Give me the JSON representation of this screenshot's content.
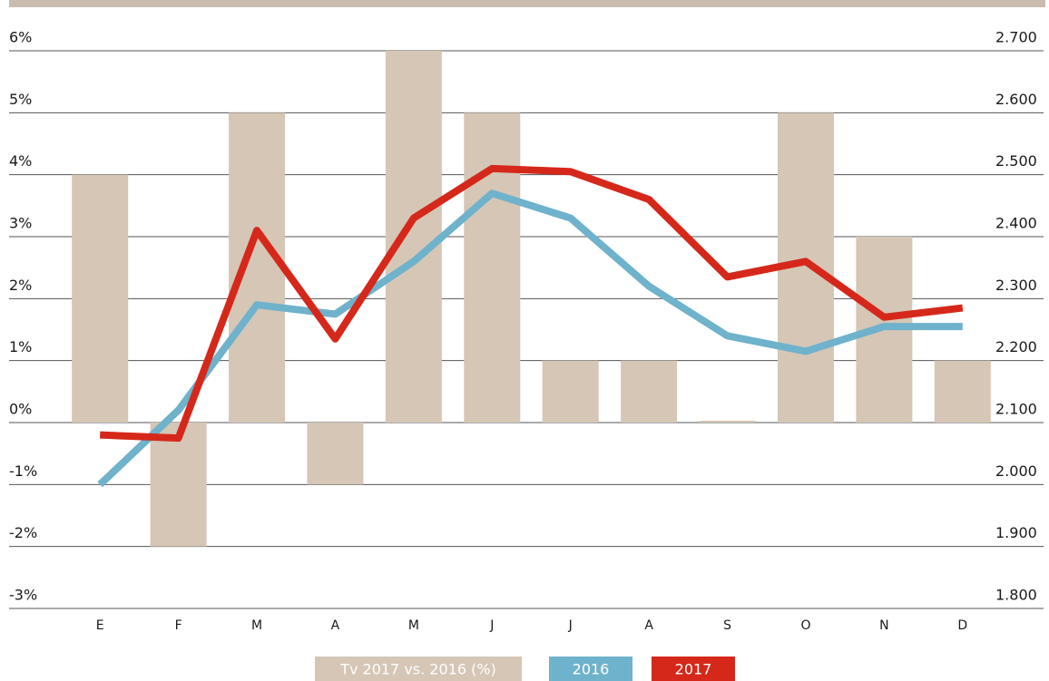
{
  "chart_data": {
    "type": "bar-line",
    "categories": [
      "E",
      "F",
      "M",
      "A",
      "M",
      "J",
      "J",
      "A",
      "S",
      "O",
      "N",
      "D"
    ],
    "series": [
      {
        "name": "Tv 2017 vs. 2016 (%)",
        "type": "bar",
        "color": "#d5c6b6",
        "values": [
          4,
          -2,
          5,
          -1,
          6,
          5,
          1,
          1,
          0.03,
          5,
          3,
          1
        ]
      },
      {
        "name": "2016",
        "type": "line",
        "axis": "y2",
        "color": "#6fb2cb",
        "values": [
          2000,
          2120,
          2290,
          2275,
          2360,
          2470,
          2430,
          2320,
          2240,
          2215,
          2255,
          2255
        ]
      },
      {
        "name": "2017",
        "type": "line",
        "axis": "y2",
        "color": "#d5281b",
        "values": [
          2080,
          2075,
          2410,
          2235,
          2430,
          2510,
          2505,
          2460,
          2335,
          2360,
          2270,
          2285
        ]
      }
    ],
    "ylim": [
      -3,
      6
    ],
    "yticks": [
      {
        "value": -3,
        "label": "-3%"
      },
      {
        "value": -2,
        "label": "-2%"
      },
      {
        "value": -1,
        "label": "-1%"
      },
      {
        "value": 0,
        "label": "0%"
      },
      {
        "value": 1,
        "label": "1%"
      },
      {
        "value": 2,
        "label": "2%"
      },
      {
        "value": 3,
        "label": "3%"
      },
      {
        "value": 4,
        "label": "4%"
      },
      {
        "value": 5,
        "label": "5%"
      },
      {
        "value": 6,
        "label": "6%"
      }
    ],
    "y2lim": [
      1800,
      2700
    ],
    "y2ticks": [
      {
        "value": 1800,
        "label": "1.800"
      },
      {
        "value": 1900,
        "label": "1.900"
      },
      {
        "value": 2000,
        "label": "2.000"
      },
      {
        "value": 2100,
        "label": "2.100"
      },
      {
        "value": 2200,
        "label": "2.200"
      },
      {
        "value": 2300,
        "label": "2.300"
      },
      {
        "value": 2400,
        "label": "2.400"
      },
      {
        "value": 2500,
        "label": "2.500"
      },
      {
        "value": 2600,
        "label": "2.600"
      },
      {
        "value": 2700,
        "label": "2.700"
      }
    ],
    "grid": true
  }
}
